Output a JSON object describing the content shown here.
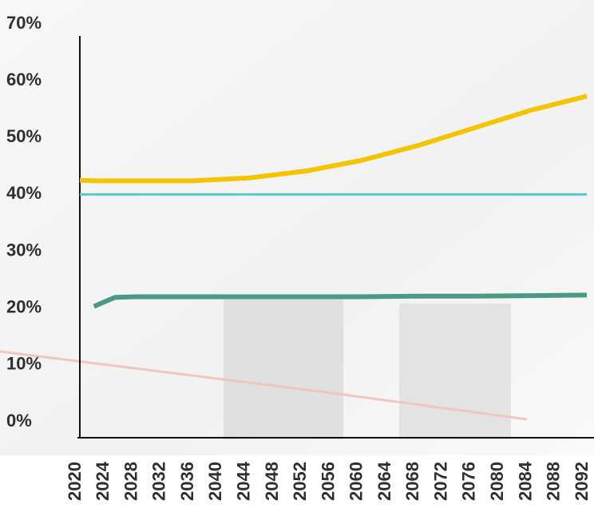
{
  "chart_data": {
    "type": "line",
    "x": [
      2020,
      2022,
      2025,
      2028,
      2036,
      2044,
      2052,
      2060,
      2068,
      2076,
      2084,
      2092
    ],
    "series": [
      {
        "color": "#f5c400",
        "values": [
          42.5,
          42.4,
          42.4,
          42.4,
          42.4,
          42.9,
          44.1,
          46,
          48.6,
          51.7,
          54.8,
          57.3
        ]
      },
      {
        "color": "#5bc5d0",
        "values": [
          40,
          40,
          40,
          40,
          40,
          40,
          40,
          40,
          40,
          40,
          40,
          40
        ]
      },
      {
        "color": "#4a9a86",
        "values": [
          null,
          20.3,
          21.9,
          22,
          22,
          22,
          22,
          22,
          22.1,
          22.1,
          22.2,
          22.3
        ]
      }
    ],
    "xlim": [
      2020,
      2092
    ],
    "xticks": [
      2020,
      2024,
      2028,
      2032,
      2036,
      2040,
      2044,
      2048,
      2052,
      2056,
      2060,
      2064,
      2068,
      2072,
      2076,
      2080,
      2084,
      2088,
      2092
    ],
    "ylim": [
      0,
      70
    ],
    "yticks": [
      {
        "value": 0,
        "label": "0%"
      },
      {
        "value": 10,
        "label": "10%"
      },
      {
        "value": 20,
        "label": "20%"
      },
      {
        "value": 30,
        "label": "30%"
      },
      {
        "value": 40,
        "label": "40%"
      },
      {
        "value": 50,
        "label": "50%"
      },
      {
        "value": 60,
        "label": "60%"
      },
      {
        "value": 70,
        "label": "70%"
      }
    ],
    "grid": false
  }
}
